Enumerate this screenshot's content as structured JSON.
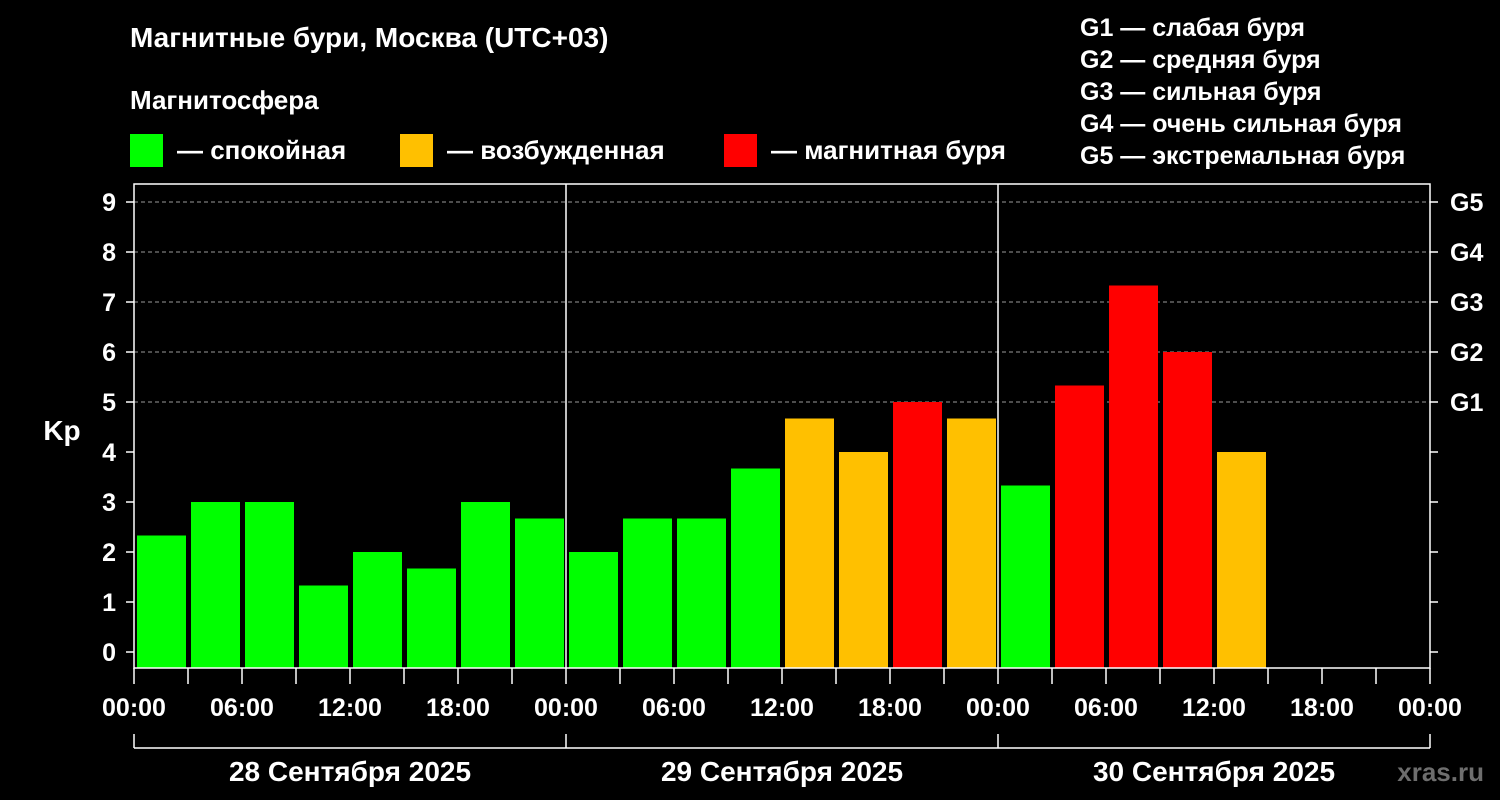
{
  "header": {
    "title": "Магнитные бури, Москва (UTC+03)",
    "subtitle": "Магнитосфера"
  },
  "legend": {
    "items": [
      {
        "label": "— спокойная",
        "color": "#00ff00"
      },
      {
        "label": "— возбужденная",
        "color": "#ffc000"
      },
      {
        "label": "— магнитная буря",
        "color": "#ff0000"
      }
    ]
  },
  "storm_scale": [
    "G1 — слабая буря",
    "G2 — средняя буря",
    "G3 — сильная буря",
    "G4 — очень сильная буря",
    "G5 — экстремальная буря"
  ],
  "watermark": "xras.ru",
  "chart_data": {
    "type": "bar",
    "ylabel": "Kp",
    "ylim": [
      0,
      9
    ],
    "yticks": [
      "0",
      "1",
      "2",
      "3",
      "4",
      "5",
      "6",
      "7",
      "8",
      "9"
    ],
    "right_axis_labels": [
      {
        "value": 5,
        "label": "G1"
      },
      {
        "value": 6,
        "label": "G2"
      },
      {
        "value": 7,
        "label": "G3"
      },
      {
        "value": 8,
        "label": "G4"
      },
      {
        "value": 9,
        "label": "G5"
      }
    ],
    "grid": "dashed horizontal lines at integer Kp levels 5–9",
    "bar_interval_hours": 3,
    "days": [
      "28 Сентября 2025",
      "29 Сентября 2025",
      "30 Сентября 2025"
    ],
    "xticks": [
      "00:00",
      "06:00",
      "12:00",
      "18:00",
      "00:00",
      "06:00",
      "12:00",
      "18:00",
      "00:00",
      "06:00",
      "12:00",
      "18:00",
      "00:00"
    ],
    "values": [
      [
        2.33,
        3.0,
        3.0,
        1.33,
        2.0,
        1.67,
        3.0,
        2.67
      ],
      [
        2.0,
        2.67,
        2.67,
        3.67,
        4.67,
        4.0,
        5.0,
        4.67
      ],
      [
        3.33,
        5.33,
        7.33,
        6.0,
        4.0
      ]
    ],
    "status": [
      [
        "quiet",
        "quiet",
        "quiet",
        "quiet",
        "quiet",
        "quiet",
        "quiet",
        "quiet"
      ],
      [
        "quiet",
        "quiet",
        "quiet",
        "quiet",
        "active",
        "active",
        "storm",
        "active"
      ],
      [
        "quiet",
        "storm",
        "storm",
        "storm",
        "active"
      ]
    ],
    "status_colors": {
      "quiet": "#00ff00",
      "active": "#ffc000",
      "storm": "#ff0000"
    }
  }
}
